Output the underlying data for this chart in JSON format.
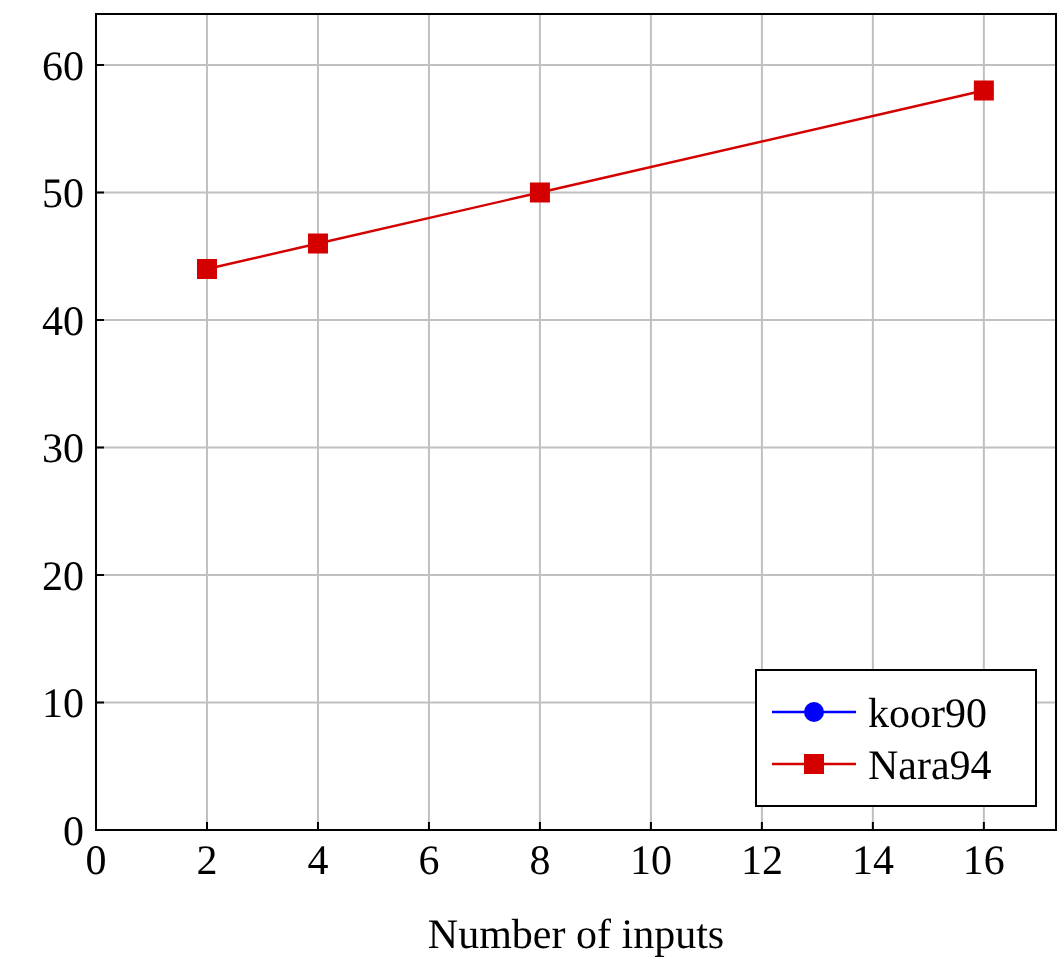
{
  "chart_data": {
    "type": "line",
    "xlabel": "Number of inputs",
    "x": [
      2,
      4,
      8,
      16
    ],
    "series": [
      {
        "name": "koor90",
        "color": "#0000ff",
        "marker": "circle",
        "values": [
          null,
          null,
          null,
          null
        ]
      },
      {
        "name": "Nara94",
        "color": "#d40000",
        "marker": "square",
        "values": [
          44,
          46,
          50,
          58
        ]
      }
    ],
    "xlim": [
      0,
      17.3
    ],
    "xticks": [
      0,
      2,
      4,
      6,
      8,
      10,
      12,
      14,
      16
    ],
    "ylim": [
      0,
      64
    ],
    "yticks": [
      0,
      10,
      20,
      30,
      40,
      50,
      60
    ],
    "grid": true,
    "legend": "bottom right",
    "line_style": "solid"
  }
}
